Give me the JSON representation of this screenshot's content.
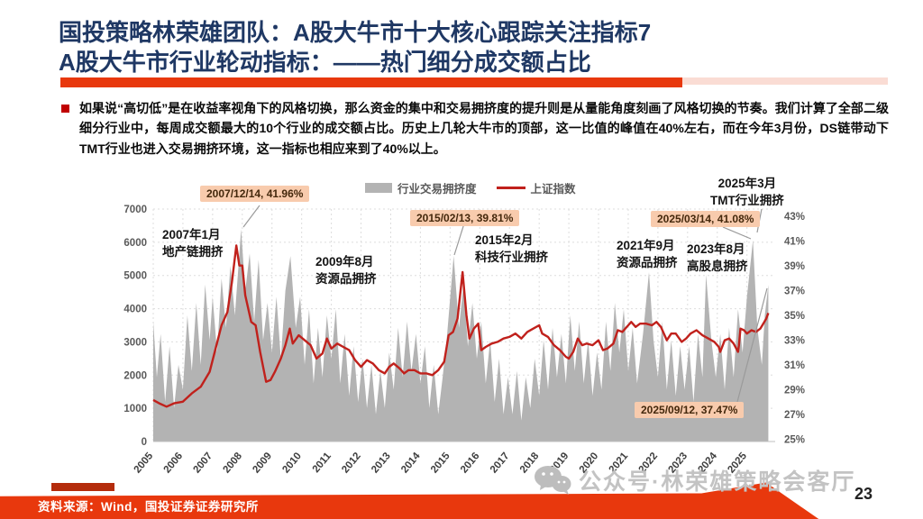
{
  "slide": {
    "title_line1": "国投策略林荣雄团队：A股大牛市十大核心跟踪关注指标7",
    "title_line2": "A股大牛市行业轮动指标：——热门细分成交额占比",
    "body_text": "如果说“高切低”是在收益率视角下的风格切换，那么资金的集中和交易拥挤度的提升则是从量能角度刻画了风格切换的节奏。我们计算了全部二级细分行业中，每周成交额最大的10个行业的成交额占比。历史上几轮大牛市的顶部，这一比值的峰值在40%左右，而在今年3月份，DS链带动下TMT行业也进入交易拥挤环境，这一指标也相应来到了40%以上。",
    "footer_source": "资料来源：Wind，国投证券证券研究所",
    "watermark": "公众号·林荣雄策略会客厅",
    "page_number": "23"
  },
  "colors": {
    "title_navy": "#1F3864",
    "accent_red": "#E8380D",
    "line_red": "#C0211C",
    "area_gray": "#B3B3B3",
    "callout_bg": "#F8CBAD",
    "grid": "#DDDDDD"
  },
  "chart_data": {
    "type": "area+line",
    "title": "",
    "legend": [
      {
        "label": "行业交易拥挤度",
        "type": "area",
        "color": "#B3B3B3",
        "axis": "right"
      },
      {
        "label": "上证指数",
        "type": "line",
        "color": "#C0211C",
        "axis": "left"
      }
    ],
    "left_axis": {
      "ticks": [
        0,
        1000,
        2000,
        3000,
        4000,
        5000,
        6000,
        7000
      ],
      "range": [
        0,
        7000
      ]
    },
    "right_axis": {
      "ticks": [
        "43%",
        "41%",
        "39%",
        "37%",
        "35%",
        "33%",
        "31%",
        "29%",
        "27%",
        "25%"
      ],
      "range": [
        24.8,
        43.6
      ],
      "unit": "%"
    },
    "x_axis": {
      "ticks": [
        2005,
        2006,
        2007,
        2008,
        2009,
        2010,
        2011,
        2012,
        2013,
        2014,
        2015,
        2016,
        2017,
        2018,
        2019,
        2020,
        2021,
        2022,
        2023,
        2024,
        2025
      ],
      "range": [
        2005,
        2025.95
      ]
    },
    "grid": true,
    "legend_position": "top-center",
    "series": [
      {
        "name": "行业交易拥挤度",
        "axis": "right",
        "type": "area",
        "color": "#B3B3B3",
        "points": [
          [
            2005.0,
            34.5
          ],
          [
            2005.12,
            30
          ],
          [
            2005.25,
            33.5
          ],
          [
            2005.4,
            28
          ],
          [
            2005.55,
            32.5
          ],
          [
            2005.7,
            27.5
          ],
          [
            2005.85,
            31
          ],
          [
            2006.0,
            29
          ],
          [
            2006.15,
            35
          ],
          [
            2006.3,
            30.5
          ],
          [
            2006.45,
            36
          ],
          [
            2006.6,
            31
          ],
          [
            2006.75,
            37.5
          ],
          [
            2006.9,
            33
          ],
          [
            2007.0,
            36.5
          ],
          [
            2007.15,
            32
          ],
          [
            2007.3,
            38
          ],
          [
            2007.45,
            34
          ],
          [
            2007.6,
            39
          ],
          [
            2007.75,
            35
          ],
          [
            2007.96,
            41.96
          ],
          [
            2008.1,
            37
          ],
          [
            2008.25,
            40
          ],
          [
            2008.4,
            34.5
          ],
          [
            2008.55,
            39.5
          ],
          [
            2008.7,
            33
          ],
          [
            2008.85,
            36
          ],
          [
            2009.0,
            32
          ],
          [
            2009.15,
            36.5
          ],
          [
            2009.3,
            31.5
          ],
          [
            2009.45,
            37
          ],
          [
            2009.62,
            39.8
          ],
          [
            2009.8,
            34
          ],
          [
            2009.95,
            36.5
          ],
          [
            2010.1,
            31
          ],
          [
            2010.25,
            35.5
          ],
          [
            2010.4,
            29.5
          ],
          [
            2010.55,
            34
          ],
          [
            2010.7,
            30
          ],
          [
            2010.85,
            35
          ],
          [
            2011.0,
            31.5
          ],
          [
            2011.15,
            35.5
          ],
          [
            2011.3,
            29.5
          ],
          [
            2011.45,
            33.5
          ],
          [
            2011.6,
            28.5
          ],
          [
            2011.75,
            32.5
          ],
          [
            2011.9,
            28
          ],
          [
            2012.05,
            31.5
          ],
          [
            2012.2,
            27.5
          ],
          [
            2012.35,
            31
          ],
          [
            2012.5,
            27
          ],
          [
            2012.65,
            30.5
          ],
          [
            2012.8,
            27.5
          ],
          [
            2012.95,
            32
          ],
          [
            2013.1,
            29
          ],
          [
            2013.25,
            34
          ],
          [
            2013.4,
            30
          ],
          [
            2013.55,
            34.5
          ],
          [
            2013.7,
            30.5
          ],
          [
            2013.85,
            33.5
          ],
          [
            2014.0,
            29.5
          ],
          [
            2014.15,
            32.5
          ],
          [
            2014.3,
            27.5
          ],
          [
            2014.45,
            31
          ],
          [
            2014.6,
            27
          ],
          [
            2014.75,
            30
          ],
          [
            2014.9,
            33.5
          ],
          [
            2015.12,
            39.81
          ],
          [
            2015.3,
            34
          ],
          [
            2015.45,
            37.5
          ],
          [
            2015.6,
            32.5
          ],
          [
            2015.75,
            36
          ],
          [
            2015.9,
            31.5
          ],
          [
            2016.05,
            34.5
          ],
          [
            2016.2,
            29.5
          ],
          [
            2016.35,
            33
          ],
          [
            2016.5,
            28
          ],
          [
            2016.65,
            31.5
          ],
          [
            2016.8,
            27
          ],
          [
            2016.95,
            30
          ],
          [
            2017.1,
            27
          ],
          [
            2017.25,
            30.5
          ],
          [
            2017.4,
            26.5
          ],
          [
            2017.55,
            30
          ],
          [
            2017.7,
            27.5
          ],
          [
            2017.85,
            31.5
          ],
          [
            2018.0,
            28.5
          ],
          [
            2018.15,
            33
          ],
          [
            2018.3,
            29
          ],
          [
            2018.45,
            34
          ],
          [
            2018.6,
            30
          ],
          [
            2018.75,
            33.5
          ],
          [
            2018.9,
            29.5
          ],
          [
            2019.05,
            35
          ],
          [
            2019.2,
            30.5
          ],
          [
            2019.35,
            34.5
          ],
          [
            2019.5,
            29.5
          ],
          [
            2019.65,
            33
          ],
          [
            2019.8,
            28.5
          ],
          [
            2019.95,
            32
          ],
          [
            2020.1,
            29
          ],
          [
            2020.25,
            34.5
          ],
          [
            2020.4,
            30.5
          ],
          [
            2020.55,
            36
          ],
          [
            2020.7,
            32
          ],
          [
            2020.85,
            35.5
          ],
          [
            2021.0,
            30.5
          ],
          [
            2021.15,
            34
          ],
          [
            2021.3,
            29.5
          ],
          [
            2021.5,
            33.5
          ],
          [
            2021.7,
            38.5
          ],
          [
            2021.85,
            33
          ],
          [
            2022.0,
            30
          ],
          [
            2022.15,
            34.5
          ],
          [
            2022.3,
            29
          ],
          [
            2022.45,
            33
          ],
          [
            2022.6,
            28.5
          ],
          [
            2022.75,
            32.5
          ],
          [
            2022.9,
            29
          ],
          [
            2023.05,
            32.5
          ],
          [
            2023.2,
            28
          ],
          [
            2023.35,
            33.5
          ],
          [
            2023.5,
            30
          ],
          [
            2023.62,
            38.3
          ],
          [
            2023.8,
            33
          ],
          [
            2023.95,
            30
          ],
          [
            2024.1,
            33.5
          ],
          [
            2024.25,
            29
          ],
          [
            2024.4,
            34
          ],
          [
            2024.55,
            30
          ],
          [
            2024.7,
            35.5
          ],
          [
            2024.85,
            32
          ],
          [
            2025.0,
            36.5
          ],
          [
            2025.2,
            41.08
          ],
          [
            2025.35,
            34
          ],
          [
            2025.5,
            31
          ],
          [
            2025.6,
            35
          ],
          [
            2025.72,
            37.47
          ]
        ]
      },
      {
        "name": "上证指数",
        "axis": "left",
        "type": "line",
        "color": "#C0211C",
        "points": [
          [
            2005.0,
            1250
          ],
          [
            2005.2,
            1150
          ],
          [
            2005.45,
            1050
          ],
          [
            2005.7,
            1150
          ],
          [
            2006.0,
            1200
          ],
          [
            2006.3,
            1450
          ],
          [
            2006.6,
            1650
          ],
          [
            2006.9,
            2100
          ],
          [
            2007.1,
            2800
          ],
          [
            2007.3,
            3500
          ],
          [
            2007.5,
            3900
          ],
          [
            2007.65,
            4800
          ],
          [
            2007.8,
            5900
          ],
          [
            2007.9,
            5300
          ],
          [
            2008.0,
            5300
          ],
          [
            2008.1,
            4400
          ],
          [
            2008.3,
            3600
          ],
          [
            2008.45,
            3500
          ],
          [
            2008.6,
            2700
          ],
          [
            2008.8,
            1800
          ],
          [
            2008.95,
            1850
          ],
          [
            2009.1,
            2100
          ],
          [
            2009.3,
            2500
          ],
          [
            2009.45,
            2900
          ],
          [
            2009.6,
            3400
          ],
          [
            2009.7,
            2950
          ],
          [
            2009.9,
            3200
          ],
          [
            2010.1,
            3050
          ],
          [
            2010.3,
            2900
          ],
          [
            2010.5,
            2500
          ],
          [
            2010.7,
            2650
          ],
          [
            2010.85,
            3100
          ],
          [
            2011.0,
            2800
          ],
          [
            2011.2,
            2950
          ],
          [
            2011.4,
            2850
          ],
          [
            2011.6,
            2750
          ],
          [
            2011.8,
            2450
          ],
          [
            2012.0,
            2250
          ],
          [
            2012.2,
            2450
          ],
          [
            2012.4,
            2350
          ],
          [
            2012.6,
            2150
          ],
          [
            2012.8,
            2050
          ],
          [
            2012.95,
            2250
          ],
          [
            2013.1,
            2350
          ],
          [
            2013.3,
            2200
          ],
          [
            2013.45,
            2050
          ],
          [
            2013.6,
            2150
          ],
          [
            2013.8,
            2150
          ],
          [
            2014.0,
            2050
          ],
          [
            2014.2,
            2050
          ],
          [
            2014.4,
            2000
          ],
          [
            2014.6,
            2150
          ],
          [
            2014.8,
            2400
          ],
          [
            2014.95,
            3200
          ],
          [
            2015.1,
            3300
          ],
          [
            2015.25,
            3700
          ],
          [
            2015.42,
            5100
          ],
          [
            2015.55,
            3800
          ],
          [
            2015.65,
            3100
          ],
          [
            2015.8,
            3400
          ],
          [
            2015.95,
            3550
          ],
          [
            2016.05,
            2750
          ],
          [
            2016.2,
            2850
          ],
          [
            2016.4,
            2950
          ],
          [
            2016.6,
            3000
          ],
          [
            2016.8,
            3100
          ],
          [
            2017.0,
            3150
          ],
          [
            2017.2,
            3250
          ],
          [
            2017.4,
            3100
          ],
          [
            2017.6,
            3300
          ],
          [
            2017.8,
            3400
          ],
          [
            2018.0,
            3500
          ],
          [
            2018.1,
            3250
          ],
          [
            2018.3,
            3150
          ],
          [
            2018.5,
            2900
          ],
          [
            2018.7,
            2750
          ],
          [
            2018.9,
            2550
          ],
          [
            2019.0,
            2500
          ],
          [
            2019.15,
            2700
          ],
          [
            2019.3,
            3100
          ],
          [
            2019.45,
            2900
          ],
          [
            2019.6,
            2950
          ],
          [
            2019.8,
            2900
          ],
          [
            2020.0,
            3050
          ],
          [
            2020.15,
            2750
          ],
          [
            2020.3,
            2800
          ],
          [
            2020.5,
            2950
          ],
          [
            2020.65,
            3350
          ],
          [
            2020.8,
            3300
          ],
          [
            2021.0,
            3500
          ],
          [
            2021.1,
            3600
          ],
          [
            2021.25,
            3450
          ],
          [
            2021.4,
            3550
          ],
          [
            2021.6,
            3550
          ],
          [
            2021.8,
            3500
          ],
          [
            2021.95,
            3600
          ],
          [
            2022.1,
            3450
          ],
          [
            2022.3,
            3050
          ],
          [
            2022.45,
            3250
          ],
          [
            2022.6,
            3250
          ],
          [
            2022.8,
            3000
          ],
          [
            2022.95,
            3100
          ],
          [
            2023.1,
            3250
          ],
          [
            2023.3,
            3350
          ],
          [
            2023.5,
            3200
          ],
          [
            2023.7,
            3100
          ],
          [
            2023.9,
            3000
          ],
          [
            2024.05,
            2850
          ],
          [
            2024.1,
            2700
          ],
          [
            2024.25,
            3050
          ],
          [
            2024.4,
            3100
          ],
          [
            2024.55,
            2950
          ],
          [
            2024.7,
            2700
          ],
          [
            2024.73,
            2900
          ],
          [
            2024.78,
            3400
          ],
          [
            2024.9,
            3350
          ],
          [
            2025.0,
            3250
          ],
          [
            2025.15,
            3350
          ],
          [
            2025.3,
            3300
          ],
          [
            2025.45,
            3400
          ],
          [
            2025.55,
            3550
          ],
          [
            2025.65,
            3700
          ],
          [
            2025.72,
            3870
          ]
        ]
      }
    ],
    "callouts": [
      {
        "text": "2007/12/14, 41.96%"
      },
      {
        "text": "2015/02/13, 39.81%"
      },
      {
        "text": "2025/03/14, 41.08%"
      },
      {
        "text": "2025/09/12, 37.47%"
      }
    ],
    "labels": [
      {
        "line1": "2007年1月",
        "line2": "地产链拥挤"
      },
      {
        "line1": "2009年8月",
        "line2": "资源品拥挤"
      },
      {
        "line1": "2015年2月",
        "line2": "科技行业拥挤"
      },
      {
        "line1": "2021年9月",
        "line2": "资源品拥挤"
      },
      {
        "line1": "2023年8月",
        "line2": "高股息拥挤"
      },
      {
        "line1": "2025年3月",
        "line2": "TMT行业拥挤"
      }
    ]
  }
}
